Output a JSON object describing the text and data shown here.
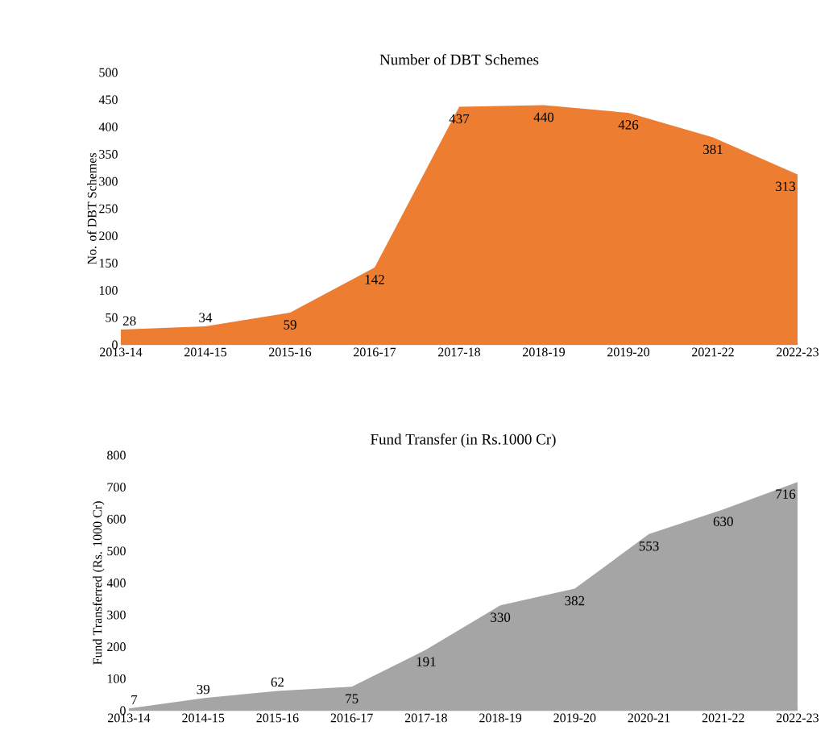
{
  "chart_data": [
    {
      "type": "area",
      "title": "Number of DBT Schemes",
      "ylabel": "No. of DBT Schemes",
      "categories": [
        "2013-14",
        "2014-15",
        "2015-16",
        "2016-17",
        "2017-18",
        "2018-19",
        "2019-20",
        "2021-22",
        "2022-23"
      ],
      "values": [
        28,
        34,
        59,
        142,
        437,
        440,
        426,
        381,
        313
      ],
      "color": "#ed7d31",
      "ylim": [
        0,
        500
      ],
      "yticks": [
        0,
        50,
        100,
        150,
        200,
        250,
        300,
        350,
        400,
        450,
        500
      ],
      "data_labels": true
    },
    {
      "type": "area",
      "title": "Fund Transfer (in Rs.1000 Cr)",
      "ylabel": "Fund Transferred (Rs. 1000 Cr)",
      "categories": [
        "2013-14",
        "2014-15",
        "2015-16",
        "2016-17",
        "2017-18",
        "2018-19",
        "2019-20",
        "2020-21",
        "2021-22",
        "2022-23"
      ],
      "values": [
        7,
        39,
        62,
        75,
        191,
        330,
        382,
        553,
        630,
        716
      ],
      "color": "#a5a5a5",
      "ylim": [
        0,
        800
      ],
      "yticks": [
        0,
        100,
        200,
        300,
        400,
        500,
        600,
        700,
        800
      ],
      "data_labels": true
    }
  ]
}
